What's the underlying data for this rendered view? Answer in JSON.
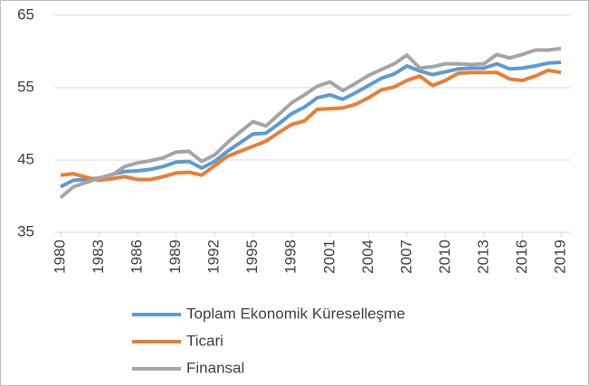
{
  "chart_data": {
    "type": "line",
    "x": [
      1980,
      1981,
      1982,
      1983,
      1984,
      1985,
      1986,
      1987,
      1988,
      1989,
      1990,
      1991,
      1992,
      1993,
      1994,
      1995,
      1996,
      1997,
      1998,
      1999,
      2000,
      2001,
      2002,
      2003,
      2004,
      2005,
      2006,
      2007,
      2008,
      2009,
      2010,
      2011,
      2012,
      2013,
      2014,
      2015,
      2016,
      2017,
      2018,
      2019
    ],
    "xlim": [
      1980,
      2019
    ],
    "xticks": [
      1980,
      1983,
      1986,
      1989,
      1992,
      1995,
      1998,
      2001,
      2004,
      2007,
      2010,
      2013,
      2016,
      2019
    ],
    "ylim": [
      35,
      65
    ],
    "yticks": [
      35,
      45,
      55,
      65
    ],
    "grid": true,
    "legend": "bottom",
    "series": [
      {
        "name": "Toplam Ekonomik Küreselleşme",
        "color": "#5b9bd5",
        "values": [
          41.3,
          42.2,
          42.3,
          42.5,
          43.0,
          43.4,
          43.5,
          43.7,
          44.1,
          44.7,
          44.8,
          43.9,
          44.8,
          46.2,
          47.4,
          48.6,
          48.7,
          50.0,
          51.4,
          52.3,
          53.6,
          54.0,
          53.4,
          54.3,
          55.3,
          56.3,
          56.9,
          58.0,
          57.3,
          56.8,
          57.2,
          57.6,
          57.7,
          57.7,
          58.3,
          57.6,
          57.7,
          58.0,
          58.4,
          58.5
        ]
      },
      {
        "name": "Ticari",
        "color": "#ed7d31",
        "values": [
          42.9,
          43.1,
          42.6,
          42.2,
          42.4,
          42.7,
          42.3,
          42.3,
          42.7,
          43.2,
          43.3,
          42.9,
          44.2,
          45.5,
          46.2,
          46.9,
          47.6,
          48.8,
          49.9,
          50.4,
          52.0,
          52.1,
          52.2,
          52.7,
          53.6,
          54.7,
          55.1,
          56.0,
          56.6,
          55.3,
          56.0,
          57.0,
          57.1,
          57.1,
          57.1,
          56.2,
          56.0,
          56.6,
          57.4,
          57.1
        ]
      },
      {
        "name": "Finansal",
        "color": "#a5a5a5",
        "values": [
          39.8,
          41.3,
          41.9,
          42.5,
          42.9,
          44.1,
          44.6,
          44.9,
          45.3,
          46.1,
          46.2,
          44.8,
          45.7,
          47.4,
          48.9,
          50.3,
          49.7,
          51.3,
          52.9,
          54.0,
          55.2,
          55.8,
          54.6,
          55.6,
          56.7,
          57.5,
          58.3,
          59.5,
          57.7,
          57.9,
          58.3,
          58.3,
          58.2,
          58.3,
          59.6,
          59.1,
          59.6,
          60.2,
          60.2,
          60.4
        ]
      }
    ]
  }
}
